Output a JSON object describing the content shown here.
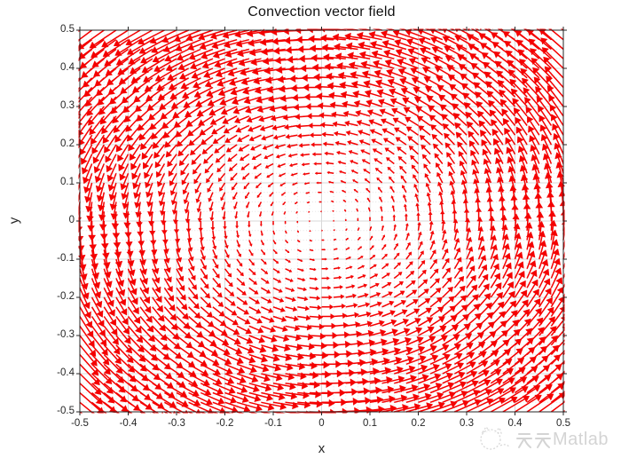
{
  "figure": {
    "title": "Convection vector field",
    "background": "#ffffff"
  },
  "chart_data": {
    "type": "quiver",
    "title": "Convection vector field",
    "xlabel": "x",
    "ylabel": "y",
    "xlim": [
      -0.5,
      0.5
    ],
    "ylim": [
      -0.5,
      0.5
    ],
    "xtick_labels": [
      "-0.5",
      "-0.4",
      "-0.3",
      "-0.2",
      "-0.1",
      "0",
      "0.1",
      "0.2",
      "0.3",
      "0.4",
      "0.5"
    ],
    "ytick_labels": [
      "-0.5",
      "-0.4",
      "-0.3",
      "-0.2",
      "-0.1",
      "0",
      "0.1",
      "0.2",
      "0.3",
      "0.4",
      "0.5"
    ],
    "grid": {
      "major_step": 0.1,
      "minor_step": 0.025,
      "major_color": "#d8d8d8",
      "minor_color": "#e3e3e3",
      "minor_style": "dotted",
      "major_on": true,
      "minor_on": true
    },
    "field": {
      "u_expr": "-y",
      "v_expr": "x",
      "description": "rigid counterclockwise rotation about the origin; arrow magnitude grows with radius, zero at center"
    },
    "sample_grid": {
      "min": -0.5,
      "max": 0.5,
      "step": 0.025,
      "points_per_axis": 41
    },
    "arrow": {
      "color": "#f40000",
      "scale": 0.11,
      "line_width": 1.5
    },
    "axis_color": "#262626",
    "tick_length": 4,
    "legend": "none",
    "box_on": true
  },
  "watermark": {
    "text": "天天Matlab",
    "latin_part": "Matlab",
    "color": "#d4d4d4",
    "icon": "cat-sketch"
  }
}
